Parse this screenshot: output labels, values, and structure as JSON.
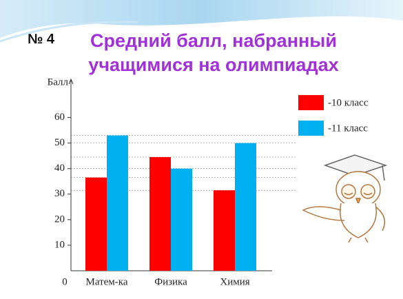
{
  "chart_data": {
    "type": "bar",
    "slide_number": "№ 4",
    "title": "Средний балл, набранный учащимися на олимпиадах",
    "ylabel": "Балл",
    "categories": [
      "Матем-ка",
      "Физика",
      "Химия"
    ],
    "series": [
      {
        "name": "-10 класс",
        "color": "#ff0000",
        "values": [
          36.5,
          44.5,
          31.5
        ]
      },
      {
        "name": "-11 класс",
        "color": "#00b0f0",
        "values": [
          53,
          40,
          50
        ]
      }
    ],
    "ylim": [
      0,
      75
    ],
    "yticks": [
      0,
      10,
      20,
      30,
      40,
      50,
      60
    ],
    "reference_lines": true,
    "legend": "right"
  }
}
